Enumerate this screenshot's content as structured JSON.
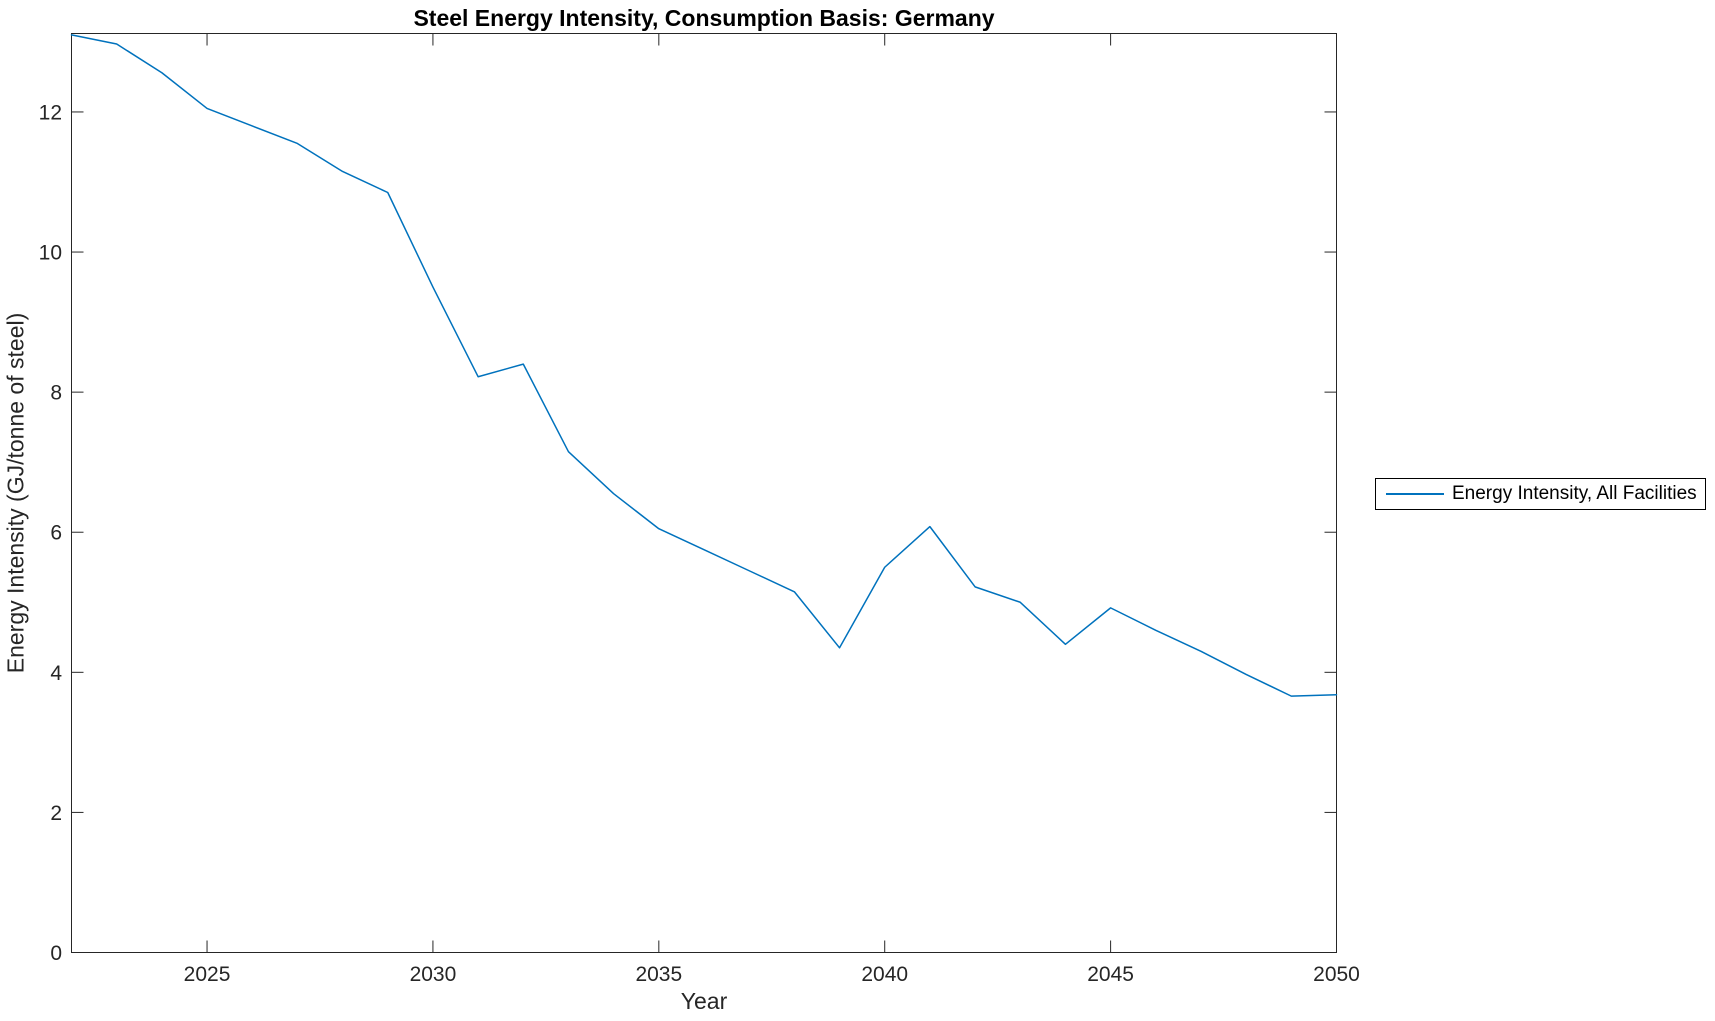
{
  "figure": {
    "background": "#ffffff"
  },
  "chart_data": {
    "type": "line",
    "title": "Steel Energy Intensity, Consumption Basis: Germany",
    "xlabel": "Year",
    "ylabel": "Energy Intensity (GJ/tonne of steel)",
    "xlim": [
      2022,
      2050
    ],
    "ylim": [
      0,
      13.12
    ],
    "xticks": [
      2025,
      2030,
      2035,
      2040,
      2045,
      2050
    ],
    "yticks": [
      0,
      2,
      4,
      6,
      8,
      10,
      12
    ],
    "grid": false,
    "legend": {
      "position": "outside-right",
      "entries": [
        {
          "label": "Energy Intensity, All Facilities",
          "color": "#0072BD"
        }
      ]
    },
    "series": [
      {
        "name": "Energy Intensity, All Facilities",
        "color": "#0072BD",
        "x": [
          2022,
          2023,
          2024,
          2025,
          2026,
          2027,
          2028,
          2029,
          2030,
          2031,
          2032,
          2033,
          2034,
          2035,
          2036,
          2037,
          2038,
          2039,
          2040,
          2041,
          2042,
          2043,
          2044,
          2045,
          2046,
          2047,
          2048,
          2049,
          2050
        ],
        "values": [
          13.1,
          12.97,
          12.56,
          12.05,
          11.8,
          11.55,
          11.15,
          10.85,
          9.5,
          8.22,
          8.4,
          7.15,
          6.55,
          6.05,
          5.75,
          5.45,
          5.15,
          4.35,
          5.5,
          6.08,
          5.22,
          5.0,
          4.4,
          4.92,
          4.6,
          4.3,
          3.97,
          3.66,
          3.68
        ]
      }
    ],
    "style": {
      "axis_color": "#262626",
      "tick_label_color": "#262626",
      "line_color": "#0072BD",
      "background": "#ffffff"
    }
  }
}
